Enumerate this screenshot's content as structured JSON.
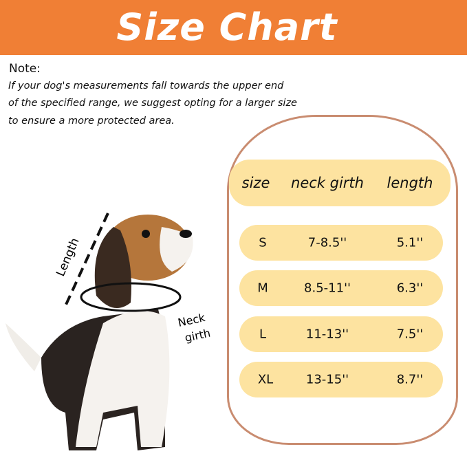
{
  "header": {
    "title": "Size Chart",
    "color": "#F07F35"
  },
  "note": {
    "heading": "Note:",
    "lines": [
      "If your dog's measurements fall towards the upper end",
      " of the specified range, we suggest opting for a larger size",
      "to ensure a more protected area."
    ]
  },
  "table": {
    "columns": [
      "size",
      "neck girth",
      "length"
    ],
    "rows": [
      {
        "size": "S",
        "neck": "7-8.5''",
        "length": "5.1''"
      },
      {
        "size": "M",
        "neck": "8.5-11''",
        "length": "6.3''"
      },
      {
        "size": "L",
        "neck": "11-13''",
        "length": "7.5''"
      },
      {
        "size": "XL",
        "neck": "13-15''",
        "length": "8.7''"
      }
    ],
    "pill_color": "#FDE3A0",
    "border_color": "#C98C70"
  },
  "diagram": {
    "length_label": "Length",
    "neck_label_1": "Neck",
    "neck_label_2": "girth"
  }
}
